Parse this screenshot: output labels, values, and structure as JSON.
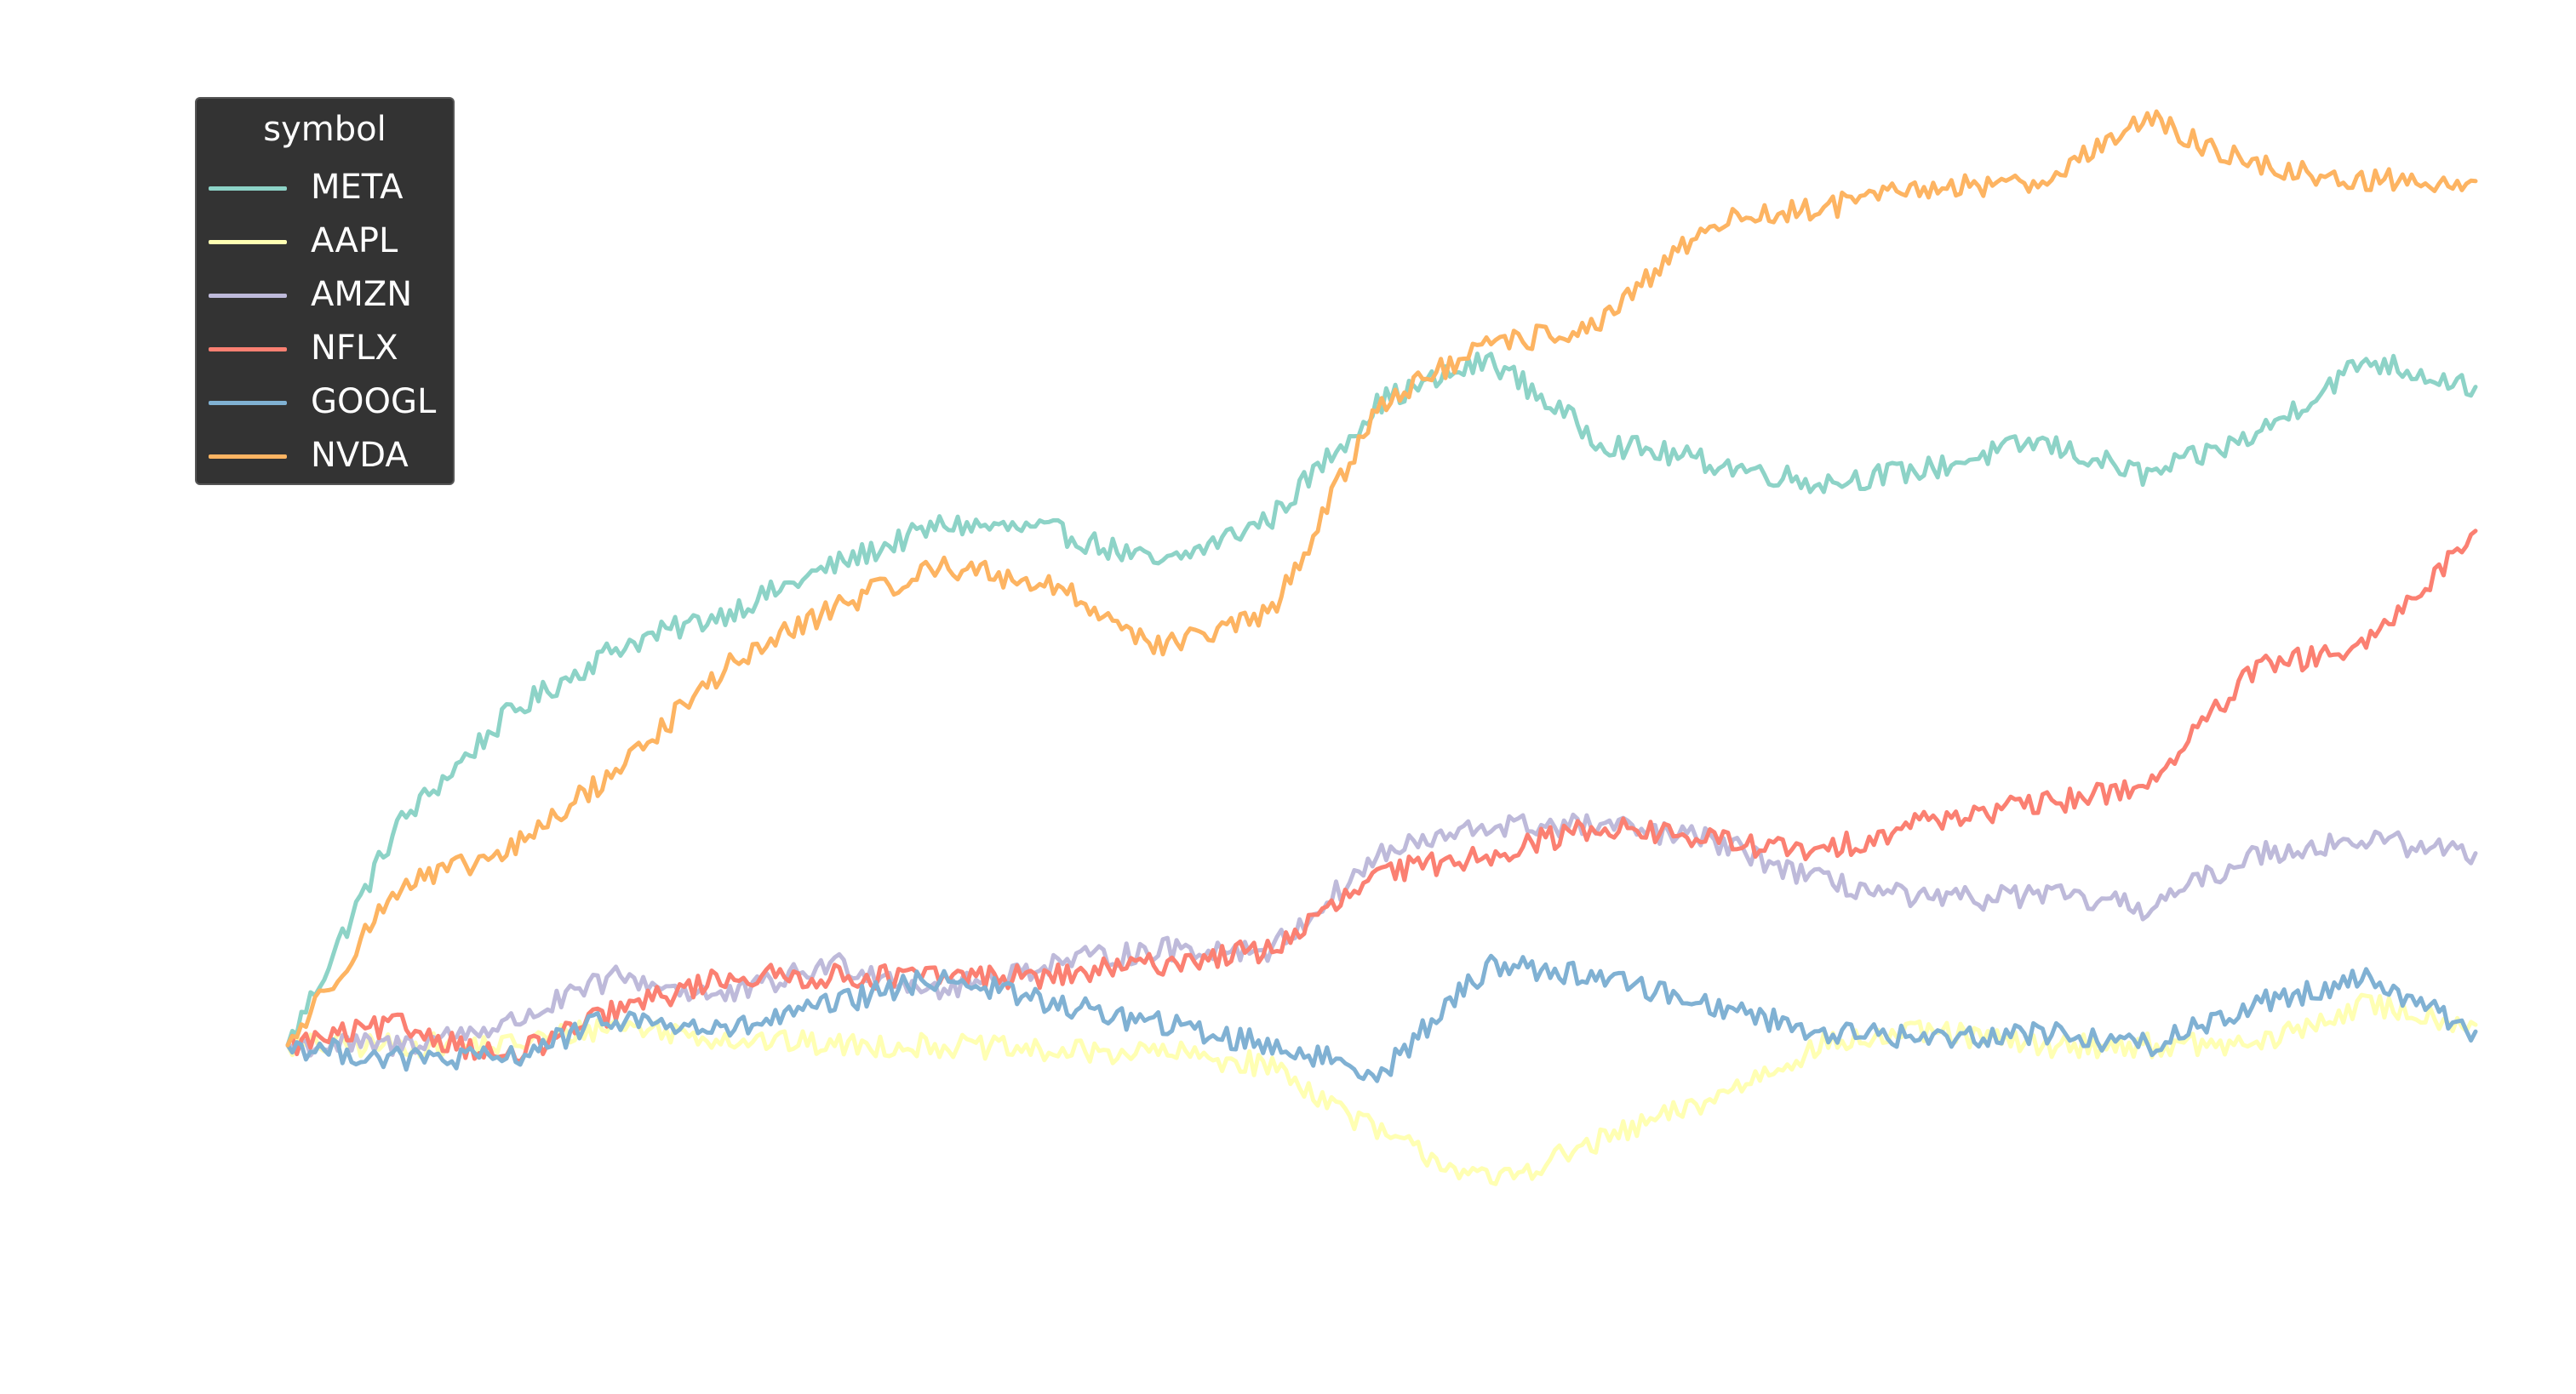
{
  "chart_data": {
    "type": "line",
    "title": "",
    "xlabel": "",
    "ylabel": "",
    "axes_visible": false,
    "grid": false,
    "legend": {
      "title": "symbol",
      "placement": "top-left",
      "background": "#222222"
    },
    "x": [
      0,
      0.05,
      0.1,
      0.15,
      0.2,
      0.25,
      0.3,
      0.35,
      0.4,
      0.45,
      0.5,
      0.55,
      0.6,
      0.65,
      0.7,
      0.75,
      0.8,
      0.85,
      0.9,
      0.95,
      1.0
    ],
    "xlim": [
      0,
      1
    ],
    "ylim": [
      0.7,
      2.4
    ],
    "series": [
      {
        "name": "META",
        "color": "#8dd3c7",
        "values": [
          1.0,
          1.32,
          1.48,
          1.58,
          1.63,
          1.7,
          1.76,
          1.75,
          1.7,
          1.77,
          1.94,
          2.0,
          1.88,
          1.85,
          1.82,
          1.84,
          1.88,
          1.83,
          1.89,
          2.0,
          1.96
        ]
      },
      {
        "name": "AAPL",
        "color": "#ffffb3",
        "values": [
          1.0,
          1.0,
          1.0,
          1.03,
          1.01,
          1.0,
          1.0,
          0.99,
          0.99,
          0.97,
          0.87,
          0.8,
          0.86,
          0.92,
          1.0,
          1.02,
          1.0,
          1.0,
          1.0,
          1.06,
          1.03
        ]
      },
      {
        "name": "AMZN",
        "color": "#bebada",
        "values": [
          1.0,
          1.0,
          1.03,
          1.1,
          1.07,
          1.12,
          1.08,
          1.12,
          1.14,
          1.14,
          1.28,
          1.32,
          1.32,
          1.3,
          1.24,
          1.21,
          1.22,
          1.2,
          1.28,
          1.3,
          1.28
        ]
      },
      {
        "name": "NFLX",
        "color": "#fb8072",
        "values": [
          1.0,
          1.03,
          0.98,
          1.05,
          1.1,
          1.1,
          1.1,
          1.1,
          1.12,
          1.14,
          1.25,
          1.28,
          1.32,
          1.3,
          1.28,
          1.33,
          1.35,
          1.38,
          1.55,
          1.58,
          1.75
        ]
      },
      {
        "name": "GOOGL",
        "color": "#80b1d3",
        "values": [
          1.0,
          0.98,
          0.98,
          1.04,
          1.02,
          1.06,
          1.1,
          1.06,
          1.03,
          1.0,
          0.96,
          1.12,
          1.1,
          1.06,
          1.02,
          1.01,
          1.02,
          1.0,
          1.06,
          1.1,
          1.02
        ]
      },
      {
        "name": "NVDA",
        "color": "#fdb462",
        "values": [
          1.0,
          1.23,
          1.28,
          1.4,
          1.55,
          1.64,
          1.7,
          1.67,
          1.58,
          1.63,
          1.94,
          2.02,
          2.05,
          2.2,
          2.22,
          2.25,
          2.26,
          2.35,
          2.28,
          2.26,
          2.26
        ]
      }
    ]
  }
}
